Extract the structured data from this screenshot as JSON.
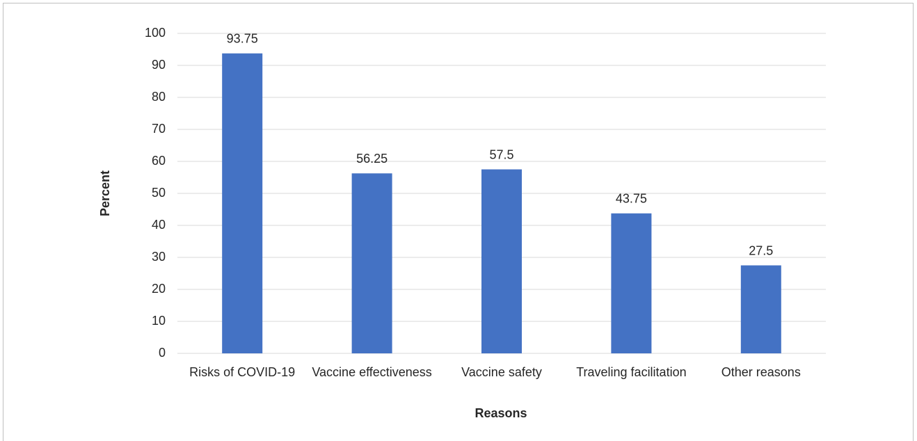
{
  "chart_data": {
    "type": "bar",
    "categories": [
      "Risks of COVID-19",
      "Vaccine effectiveness",
      "Vaccine safety",
      "Traveling facilitation",
      "Other reasons"
    ],
    "values": [
      93.75,
      56.25,
      57.5,
      43.75,
      27.5
    ],
    "color": "#4472c4",
    "x_label": "Reasons",
    "y_label": "Percent",
    "ylim": [
      0,
      100
    ],
    "yticks": [
      0,
      10,
      20,
      30,
      40,
      50,
      60,
      70,
      80,
      90,
      100
    ],
    "grid": true
  }
}
